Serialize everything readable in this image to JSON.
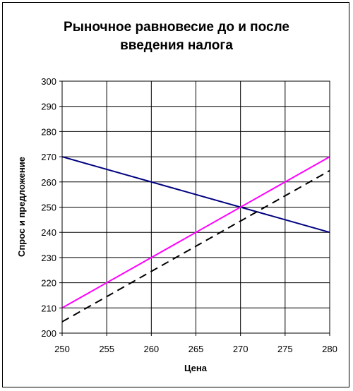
{
  "chart_data": {
    "type": "line",
    "title_lines": [
      "Рыночное равновесие до и после",
      "введения налога"
    ],
    "xlabel": "Цена",
    "ylabel": "Спрос и предложение",
    "xlim": [
      250,
      280
    ],
    "ylim": [
      200,
      300
    ],
    "x_ticks": [
      250,
      255,
      260,
      265,
      270,
      275,
      280
    ],
    "y_ticks": [
      200,
      210,
      220,
      230,
      240,
      250,
      260,
      270,
      280,
      290,
      300
    ],
    "grid": true,
    "legend": "none",
    "series": [
      {
        "color": "#000080",
        "dash": "solid",
        "x": [
          250,
          280
        ],
        "y": [
          270,
          240
        ]
      },
      {
        "color": "#ff00ff",
        "dash": "solid",
        "x": [
          250,
          280
        ],
        "y": [
          210,
          270
        ]
      },
      {
        "color": "#000000",
        "dash": "dashed",
        "x": [
          250,
          280
        ],
        "y": [
          204.5,
          264.5
        ]
      }
    ]
  }
}
